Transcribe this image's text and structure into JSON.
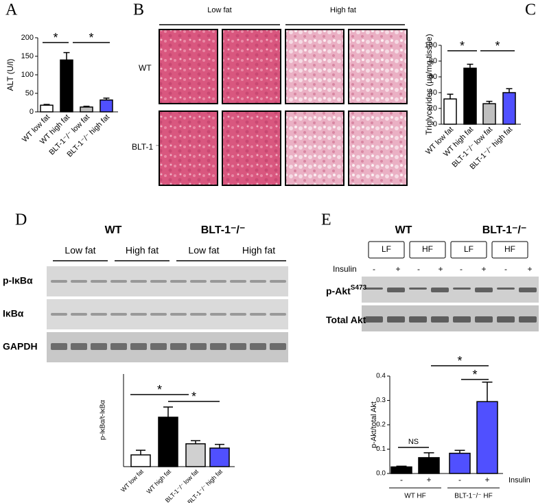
{
  "chart_data": [
    {
      "type": "bar",
      "panel": "A",
      "ylabel": "ALT (U/l)",
      "categories": [
        "WT low fat",
        "WT high fat",
        "BLT-1⁻/⁻ low fat",
        "BLT-1⁻/⁻ high fat"
      ],
      "values": [
        18,
        140,
        13,
        32
      ],
      "errors": [
        2,
        20,
        2,
        5
      ],
      "colors": [
        "#ffffff",
        "#000000",
        "#bfbfbf",
        "#5050ff"
      ],
      "ylim": [
        0,
        200
      ],
      "yticks": [
        0,
        50,
        100,
        150,
        200
      ],
      "annotations": [
        "*",
        "*"
      ]
    },
    {
      "type": "bar",
      "panel": "C",
      "ylabel": "Triglycerides (µg/mg tissue)",
      "categories": [
        "WT low fat",
        "WT high fat",
        "BLT-1⁻/⁻ low fat",
        "BLT-1⁻/⁻ high fat"
      ],
      "values": [
        32,
        71,
        26,
        40
      ],
      "errors": [
        6,
        5,
        3,
        5
      ],
      "colors": [
        "#ffffff",
        "#000000",
        "#bfbfbf",
        "#5050ff"
      ],
      "ylim": [
        0,
        100
      ],
      "yticks": [
        0,
        20,
        40,
        60,
        80,
        100
      ],
      "annotations": [
        "*",
        "*"
      ]
    },
    {
      "type": "bar",
      "ylabel": "p-IκBα/t-IκBα",
      "categories": [
        "WT low fat",
        "WT high fat",
        "BLT-1⁻/⁻ low fat",
        "BLT-1⁻/⁻ high fat"
      ],
      "values": [
        0.38,
        1.6,
        0.74,
        0.6
      ],
      "errors": [
        0.15,
        0.33,
        0.1,
        0.12
      ],
      "colors": [
        "#ffffff",
        "#000000",
        "#d0d0d0",
        "#5050ff"
      ],
      "ylim": [
        0,
        3
      ],
      "annotations": [
        "*",
        "*"
      ]
    },
    {
      "type": "bar",
      "ylabel": "p-Akt/total Akt",
      "categories": [
        "-",
        "+",
        "-",
        "+"
      ],
      "groups": [
        "WT HF",
        "BLT-1⁻/⁻ HF"
      ],
      "xlabel": "Insulin",
      "values": [
        0.027,
        0.065,
        0.083,
        0.295
      ],
      "errors": [
        0.003,
        0.02,
        0.012,
        0.08
      ],
      "colors": [
        "#000000",
        "#000000",
        "#5050ff",
        "#5050ff"
      ],
      "ylim": [
        0,
        0.4
      ],
      "yticks": [
        {
          "value": 0,
          "label": "0.0"
        },
        0.1,
        0.2,
        0.3,
        0.4
      ],
      "annotations": [
        "NS",
        "*",
        "*"
      ]
    }
  ],
  "panel_b": {
    "panel": "B",
    "columns": [
      "Low fat",
      "High fat"
    ],
    "rows": [
      "WT",
      "BLT-1 ⁻/⁻"
    ]
  },
  "panel_d": {
    "panel": "D",
    "genotypes": [
      "WT",
      "BLT-1⁻/⁻"
    ],
    "diets": [
      "Low fat",
      "High fat",
      "Low fat",
      "High fat"
    ],
    "blots": [
      "p-IκBα",
      "IκBα",
      "GAPDH"
    ]
  },
  "panel_e": {
    "panel": "E",
    "genotypes": [
      "WT",
      "BLT-1⁻/⁻"
    ],
    "diets": [
      "LF",
      "HF",
      "LF",
      "HF"
    ],
    "treatment": "Insulin",
    "treatment_levels": [
      "-",
      "+",
      "-",
      "+",
      "-",
      "+",
      "-",
      "+"
    ],
    "blots": [
      {
        "name": "p-Akt",
        "sup": "S473"
      },
      {
        "name": "Total Akt"
      }
    ]
  }
}
